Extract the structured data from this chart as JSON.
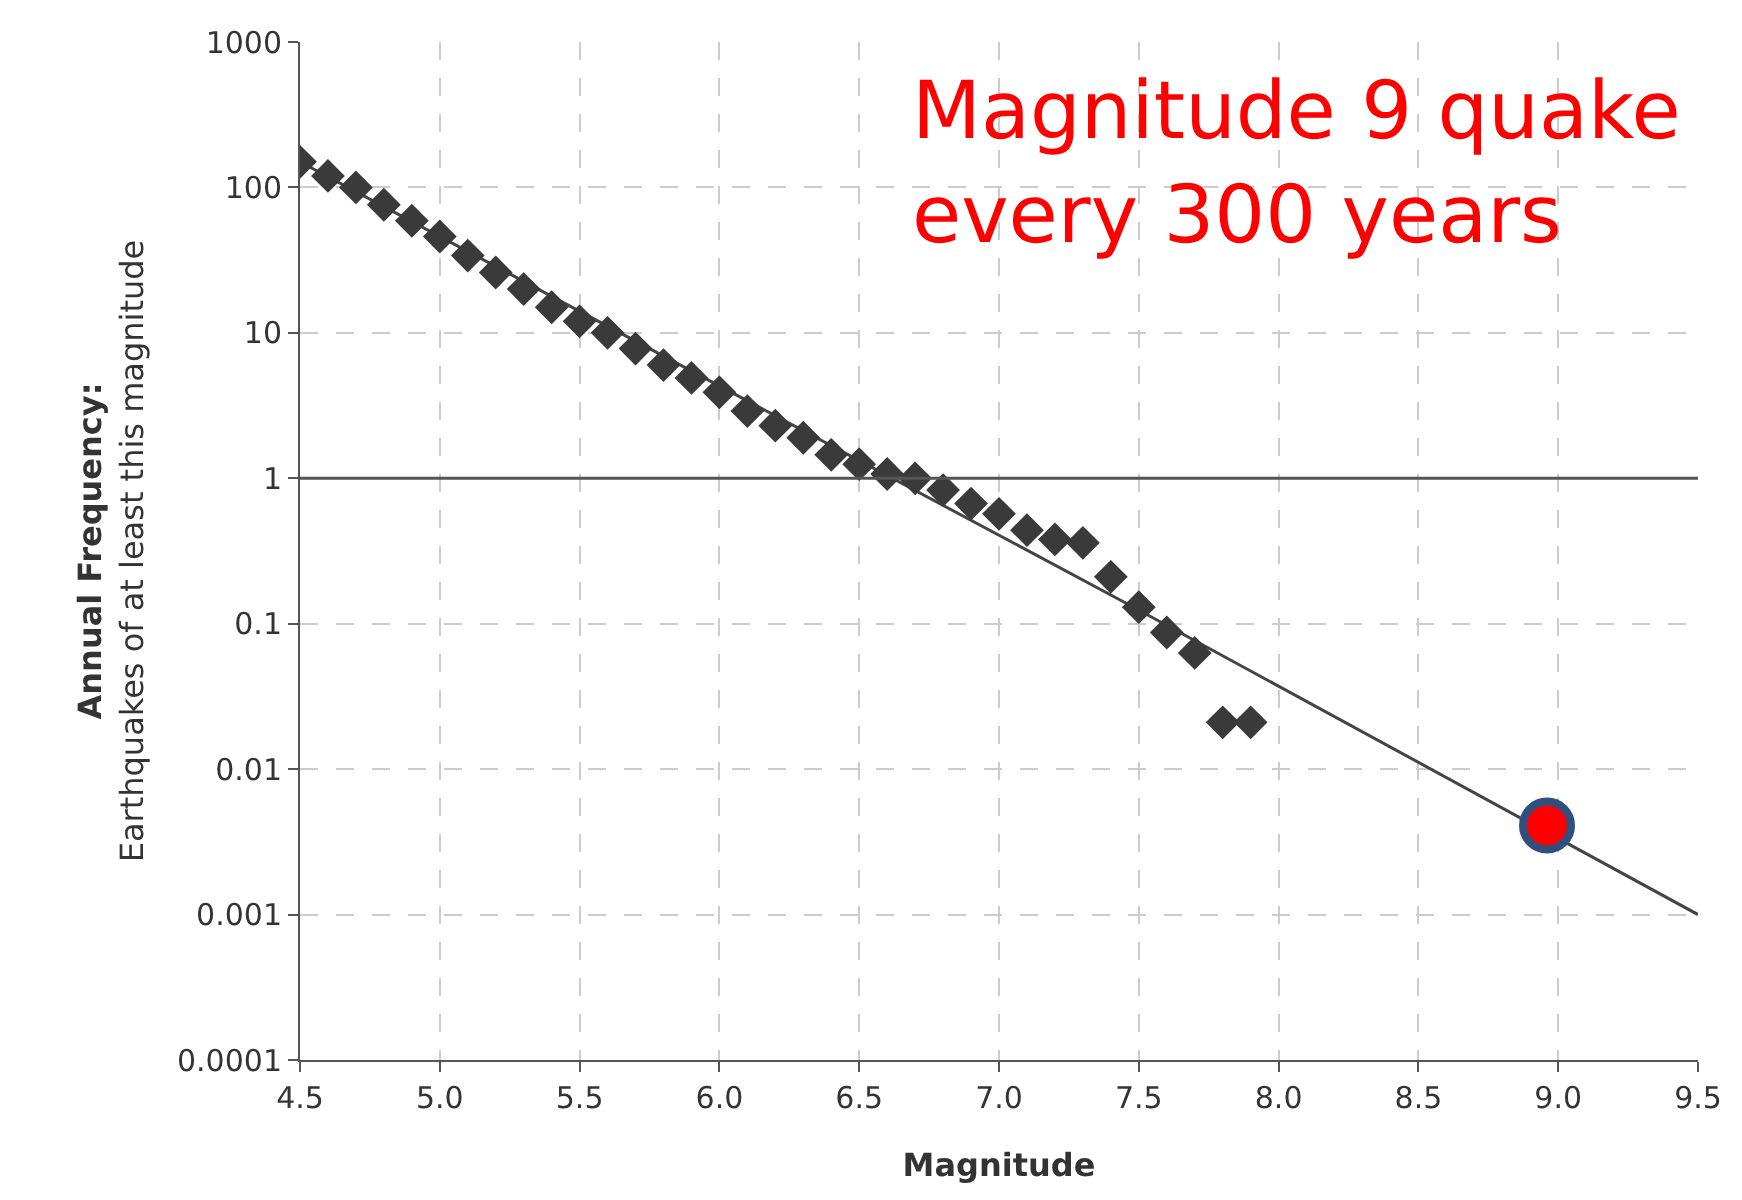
{
  "chart_data": {
    "type": "scatter",
    "xlabel": "Magnitude",
    "ylabel": "Annual Frequency:\nEarthquakes of at least this magnitude",
    "log": "y",
    "grid": true,
    "legend": false,
    "xlim": [
      4.5,
      9.5
    ],
    "xticks": [
      4.5,
      {
        "value": 5,
        "label": "5.0"
      },
      5.5,
      {
        "value": 6,
        "label": "6.0"
      },
      6.5,
      {
        "value": 7,
        "label": "7.0"
      },
      7.5,
      {
        "value": 8,
        "label": "8.0"
      },
      8.5,
      {
        "value": 9,
        "label": "9.0"
      },
      9.5
    ],
    "ylim": [
      0.0001,
      1000
    ],
    "yticks": [
      0.0001,
      0.001,
      0.01,
      0.1,
      1,
      10,
      100,
      1000
    ],
    "ref_lines": [
      {
        "axis": "y",
        "value": 1,
        "color": "#555555"
      }
    ],
    "annotations": [
      "Magnitude 9 quake\nevery 300 years"
    ],
    "series": [
      {
        "type": "line",
        "color": "#444444",
        "marker": "none",
        "line_style": "solid",
        "x": [
          4.5,
          7.45,
          9.5
        ],
        "values": [
          150,
          0.14,
          0.001
        ]
      },
      {
        "color": "#3a3a3a",
        "marker": "diamond",
        "x": [
          4.5,
          4.6,
          4.7,
          4.8,
          4.9,
          5.0,
          5.1,
          5.2,
          5.3,
          5.4,
          5.5,
          5.6,
          5.7,
          5.8,
          5.9,
          6.0,
          6.1,
          6.2,
          6.3,
          6.4,
          6.5,
          6.6,
          6.7,
          6.8,
          6.9,
          7.0,
          7.1,
          7.2,
          7.3,
          7.4,
          7.5,
          7.6,
          7.7,
          7.8,
          7.9
        ],
        "values": [
          150,
          120,
          100,
          76,
          59,
          46,
          34,
          26,
          20,
          15,
          12,
          10,
          7.8,
          6,
          4.9,
          3.9,
          2.9,
          2.3,
          1.9,
          1.45,
          1.25,
          1.07,
          1,
          0.83,
          0.67,
          0.57,
          0.44,
          0.38,
          0.36,
          0.21,
          0.13,
          0.087,
          0.063,
          0.021,
          0.021
        ]
      },
      {
        "color": "#ff0000",
        "marker": "circle",
        "x": [
          8.96
        ],
        "values": [
          0.0041
        ]
      }
    ]
  }
}
